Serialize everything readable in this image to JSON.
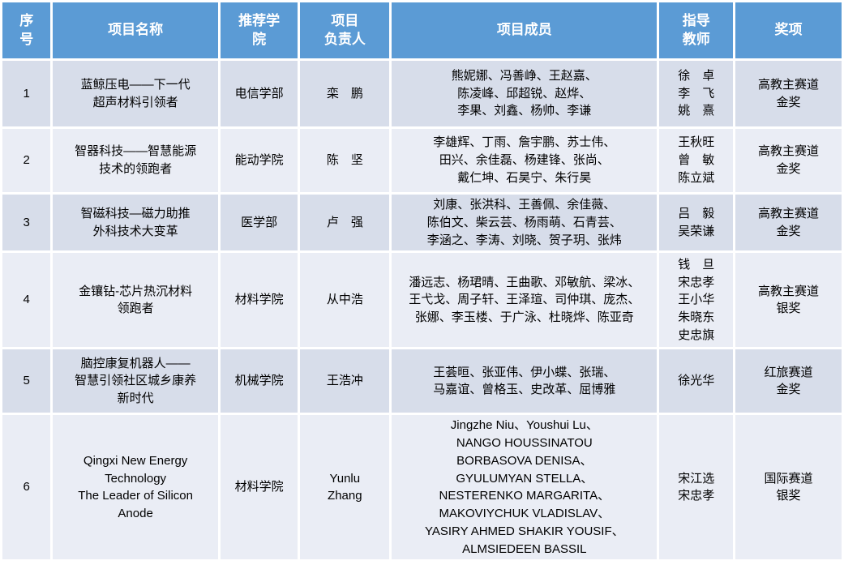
{
  "colors": {
    "header_bg": "#5B9BD5",
    "header_text": "#FFFFFF",
    "row_odd_bg": "#D7DDEA",
    "row_even_bg": "#EAEDF5",
    "grid": "#FFFFFF",
    "body_text": "#000000"
  },
  "table": {
    "headers": {
      "seq": [
        "序",
        "号"
      ],
      "name": "项目名称",
      "college": [
        "推荐学",
        "院"
      ],
      "leader": [
        "项目",
        "负责人"
      ],
      "members": "项目成员",
      "advisors": [
        "指导",
        "教师"
      ],
      "award": "奖项"
    },
    "rows": [
      {
        "seq": "1",
        "name": [
          "蓝鲸压电——下一代",
          "超声材料引领者"
        ],
        "college": "电信学部",
        "leader": "栾　鹏",
        "members": [
          "熊妮娜、冯善峥、王赵嘉、",
          "陈凌峰、邱超锐、赵烨、",
          "李果、刘鑫、杨帅、李谦"
        ],
        "advisors": [
          "徐　卓",
          "李　飞",
          "姚　熹"
        ],
        "award": [
          "高教主赛道",
          "金奖"
        ]
      },
      {
        "seq": "2",
        "name": [
          "智器科技——智慧能源",
          "技术的领跑者"
        ],
        "college": "能动学院",
        "leader": "陈　坚",
        "members": [
          "李雄辉、丁雨、詹宇鹏、苏士伟、",
          "田兴、余佳磊、杨建锋、张尚、",
          "戴仁坤、石昊宁、朱行昊"
        ],
        "advisors": [
          "王秋旺",
          "曾　敏",
          "陈立斌"
        ],
        "award": [
          "高教主赛道",
          "金奖"
        ]
      },
      {
        "seq": "3",
        "name": [
          "智磁科技—磁力助推",
          "外科技术大变革"
        ],
        "college": "医学部",
        "leader": "卢　强",
        "members": [
          "刘康、张洪科、王善佩、余佳薇、",
          "陈伯文、柴云芸、杨雨萌、石青芸、",
          "李涵之、李涛、刘晓、贺子玥、张炜"
        ],
        "advisors": [
          "吕　毅",
          "吴荣谦"
        ],
        "award": [
          "高教主赛道",
          "金奖"
        ]
      },
      {
        "seq": "4",
        "name": [
          "金镶钻-芯片热沉材料",
          "领跑者"
        ],
        "college": "材料学院",
        "leader": "从中浩",
        "members": [
          "潘远志、杨珺晴、王曲歌、邓敏航、梁冰、",
          "王弋戈、周子轩、王泽瑄、司仲琪、庞杰、",
          "张娜、李玉楼、于广泳、杜晓烨、陈亚奇"
        ],
        "advisors": [
          "钱　旦",
          "宋忠孝",
          "王小华",
          "朱晓东",
          "史忠旗"
        ],
        "award": [
          "高教主赛道",
          "银奖"
        ]
      },
      {
        "seq": "5",
        "name": [
          "脑控康复机器人——",
          "智慧引领社区城乡康养",
          "新时代"
        ],
        "college": "机械学院",
        "leader": "王浩冲",
        "members": [
          "王荟晅、张亚伟、伊小蝶、张瑞、",
          "马嘉谊、曾格玉、史改革、屈博雅"
        ],
        "advisors": [
          "徐光华"
        ],
        "award": [
          "红旅赛道",
          "金奖"
        ]
      },
      {
        "seq": "6",
        "name": [
          "Qingxi New Energy",
          "Technology",
          "The Leader of Silicon",
          "Anode"
        ],
        "college": "材料学院",
        "leader": [
          "Yunlu",
          "Zhang"
        ],
        "members": [
          "Jingzhe Niu、Youshui Lu、",
          "NANGO HOUSSINATOU",
          "BORBASOVA DENISA、",
          "GYULUMYAN STELLA、",
          "NESTERENKO MARGARITA、",
          "MAKOVIYCHUK VLADISLAV、",
          "YASIRY AHMED SHAKIR YOUSIF、",
          "ALMSIEDEEN BASSIL"
        ],
        "advisors": [
          "宋江选",
          "宋忠孝"
        ],
        "award": [
          "国际赛道",
          "银奖"
        ]
      }
    ]
  }
}
